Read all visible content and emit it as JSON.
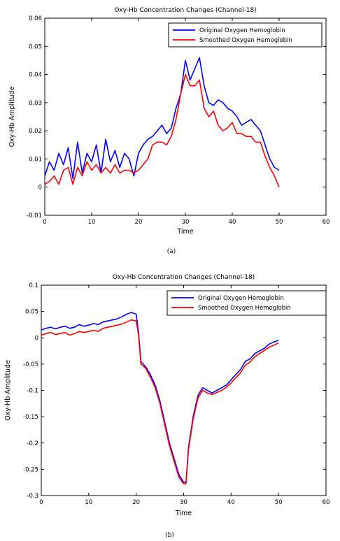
{
  "chart_data": [
    {
      "type": "line",
      "title": "Oxy-Hb Concentration Changes (Channel-18)",
      "xlabel": "Time",
      "ylabel": "Oxy-Hb Amplitude",
      "xlim": [
        0,
        60
      ],
      "ylim": [
        -0.01,
        0.06
      ],
      "xticks": [
        "0",
        "10",
        "20",
        "30",
        "40",
        "50",
        "60"
      ],
      "yticks": [
        "-0.01",
        "0",
        "0.01",
        "0.02",
        "0.03",
        "0.04",
        "0.05",
        "0.06"
      ],
      "legend_placement": "top-right",
      "grid": false,
      "caption": "(a)",
      "series": [
        {
          "name": "Original Oxygen Hemoglobin",
          "color": "#0000ff",
          "x": [
            0,
            1,
            2,
            3,
            4,
            5,
            6,
            7,
            8,
            9,
            10,
            11,
            12,
            13,
            14,
            15,
            16,
            17,
            18,
            19,
            20,
            21,
            22,
            23,
            24,
            25,
            26,
            27,
            28,
            29,
            30,
            31,
            32,
            33,
            34,
            35,
            36,
            37,
            38,
            39,
            40,
            41,
            42,
            43,
            44,
            45,
            46,
            47,
            48,
            49,
            50
          ],
          "y": [
            0.004,
            0.009,
            0.006,
            0.012,
            0.008,
            0.014,
            0.003,
            0.016,
            0.005,
            0.012,
            0.009,
            0.015,
            0.005,
            0.017,
            0.009,
            0.013,
            0.007,
            0.012,
            0.01,
            0.004,
            0.012,
            0.015,
            0.017,
            0.018,
            0.02,
            0.022,
            0.019,
            0.021,
            0.028,
            0.033,
            0.045,
            0.038,
            0.042,
            0.046,
            0.036,
            0.03,
            0.029,
            0.031,
            0.03,
            0.028,
            0.027,
            0.025,
            0.022,
            0.023,
            0.024,
            0.022,
            0.02,
            0.015,
            0.01,
            0.007,
            0.006
          ]
        },
        {
          "name": "Smoothed Oxygen Hemoglobin",
          "color": "#ff0000",
          "x": [
            0,
            1,
            2,
            3,
            4,
            5,
            6,
            7,
            8,
            9,
            10,
            11,
            12,
            13,
            14,
            15,
            16,
            17,
            18,
            19,
            20,
            21,
            22,
            23,
            24,
            25,
            26,
            27,
            28,
            29,
            30,
            31,
            32,
            33,
            34,
            35,
            36,
            37,
            38,
            39,
            40,
            41,
            42,
            43,
            44,
            45,
            46,
            47,
            48,
            49,
            50
          ],
          "y": [
            0.001,
            0.002,
            0.004,
            0.001,
            0.006,
            0.007,
            0.001,
            0.007,
            0.004,
            0.009,
            0.006,
            0.008,
            0.005,
            0.007,
            0.005,
            0.008,
            0.005,
            0.006,
            0.006,
            0.005,
            0.006,
            0.008,
            0.01,
            0.015,
            0.016,
            0.016,
            0.015,
            0.018,
            0.024,
            0.033,
            0.04,
            0.036,
            0.036,
            0.038,
            0.028,
            0.025,
            0.027,
            0.022,
            0.02,
            0.021,
            0.023,
            0.019,
            0.019,
            0.018,
            0.018,
            0.016,
            0.016,
            0.011,
            0.007,
            0.004,
            0.0
          ]
        }
      ]
    },
    {
      "type": "line",
      "title": "Oxy-Hb Concentration Changes (Channel-18)",
      "xlabel": "Time",
      "ylabel": "Oxy-Hb Amplitude",
      "xlim": [
        0,
        60
      ],
      "ylim": [
        -0.3,
        0.1
      ],
      "xticks": [
        "0",
        "10",
        "20",
        "30",
        "40",
        "50",
        "60"
      ],
      "yticks": [
        "-0.3",
        "-0.25",
        "-0.2",
        "-0.15",
        "-0.1",
        "-0.05",
        "0",
        "0.05",
        "0.1"
      ],
      "legend_placement": "top-right",
      "grid": false,
      "caption": "(b)",
      "series": [
        {
          "name": "Original Oxygen Hemoglobin",
          "color": "#0000ff",
          "x": [
            0,
            1,
            2,
            3,
            4,
            5,
            6,
            7,
            8,
            9,
            10,
            11,
            12,
            13,
            14,
            15,
            16,
            17,
            18,
            19,
            20,
            20.5,
            21,
            22,
            23,
            24,
            25,
            26,
            27,
            28,
            29,
            30,
            30.5,
            31,
            32,
            33,
            34,
            35,
            36,
            37,
            38,
            39,
            40,
            41,
            42,
            43,
            44,
            45,
            46,
            47,
            48,
            49,
            50
          ],
          "y": [
            0.015,
            0.018,
            0.02,
            0.017,
            0.02,
            0.022,
            0.018,
            0.02,
            0.025,
            0.022,
            0.024,
            0.027,
            0.025,
            0.03,
            0.032,
            0.034,
            0.036,
            0.04,
            0.045,
            0.048,
            0.045,
            0.01,
            -0.045,
            -0.055,
            -0.07,
            -0.09,
            -0.12,
            -0.16,
            -0.2,
            -0.23,
            -0.26,
            -0.275,
            -0.275,
            -0.21,
            -0.15,
            -0.11,
            -0.095,
            -0.1,
            -0.105,
            -0.1,
            -0.095,
            -0.09,
            -0.08,
            -0.07,
            -0.06,
            -0.045,
            -0.04,
            -0.03,
            -0.025,
            -0.02,
            -0.012,
            -0.008,
            -0.005
          ]
        },
        {
          "name": "Smoothed Oxygen Hemoglobin",
          "color": "#ff0000",
          "x": [
            0,
            1,
            2,
            3,
            4,
            5,
            6,
            7,
            8,
            9,
            10,
            11,
            12,
            13,
            14,
            15,
            16,
            17,
            18,
            19,
            20,
            20.5,
            21,
            22,
            23,
            24,
            25,
            26,
            27,
            28,
            29,
            30,
            30.5,
            31,
            32,
            33,
            34,
            35,
            36,
            37,
            38,
            39,
            40,
            41,
            42,
            43,
            44,
            45,
            46,
            47,
            48,
            49,
            50
          ],
          "y": [
            0.005,
            0.008,
            0.01,
            0.006,
            0.008,
            0.01,
            0.005,
            0.008,
            0.012,
            0.01,
            0.012,
            0.014,
            0.012,
            0.018,
            0.02,
            0.022,
            0.024,
            0.026,
            0.03,
            0.034,
            0.032,
            0.005,
            -0.05,
            -0.058,
            -0.075,
            -0.095,
            -0.125,
            -0.165,
            -0.205,
            -0.235,
            -0.265,
            -0.278,
            -0.278,
            -0.215,
            -0.155,
            -0.115,
            -0.1,
            -0.105,
            -0.108,
            -0.104,
            -0.1,
            -0.094,
            -0.086,
            -0.076,
            -0.066,
            -0.052,
            -0.046,
            -0.036,
            -0.03,
            -0.024,
            -0.018,
            -0.014,
            -0.01
          ]
        }
      ]
    }
  ]
}
